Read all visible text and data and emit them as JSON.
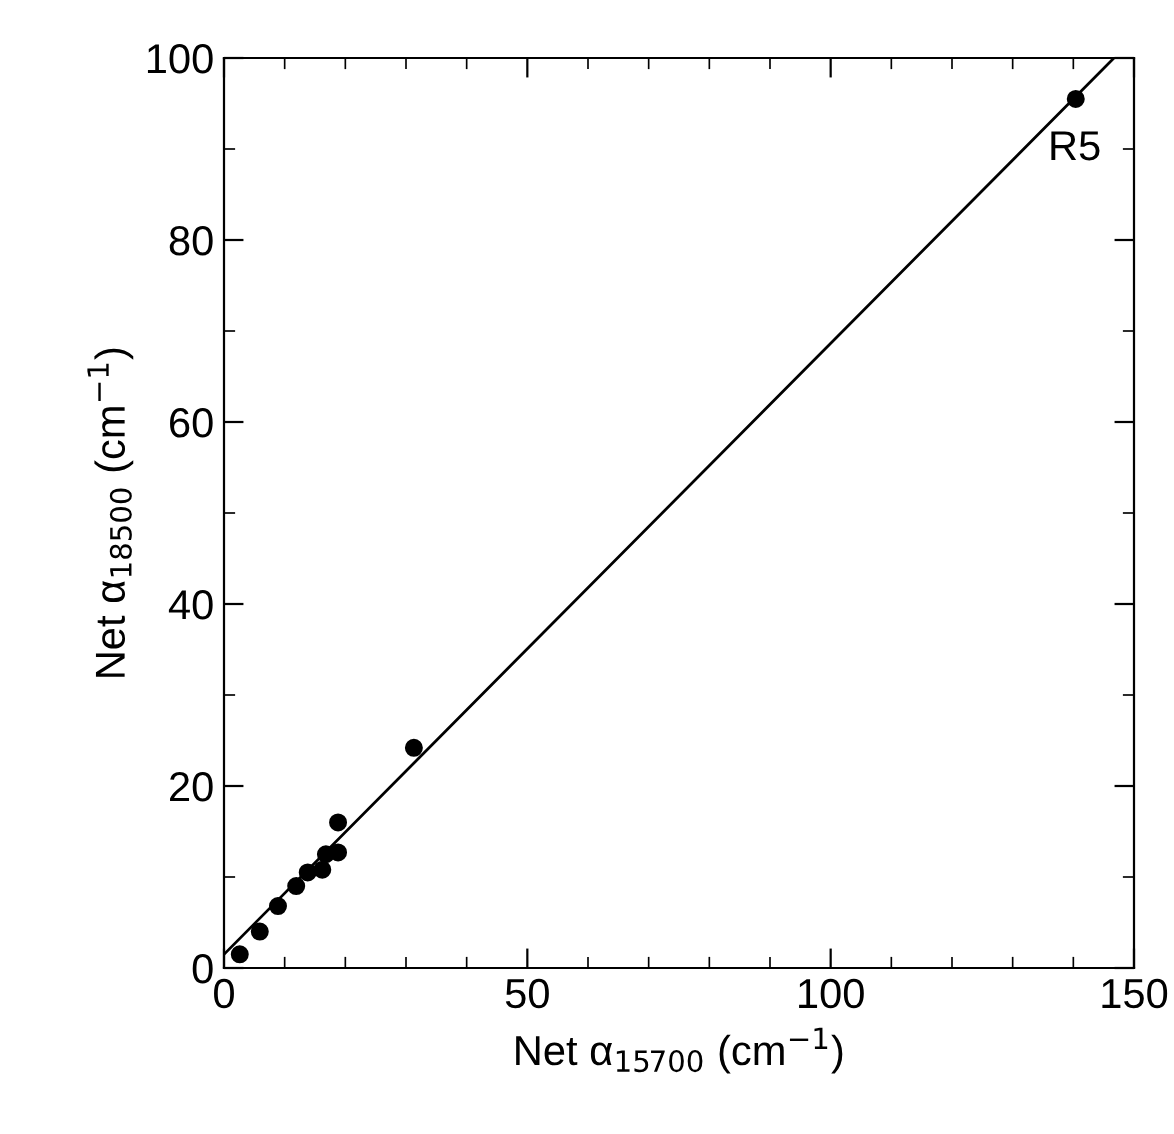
{
  "chart_data": {
    "type": "scatter",
    "xlabel": "Net α$_{15700}$ (cm$^{−1}$)",
    "ylabel": "Net α$_{18500}$ (cm$^{−1}$)",
    "series": [
      {
        "color": "#000000",
        "marker": "circle",
        "x": [
          2.6,
          5.9,
          8.9,
          11.9,
          13.8,
          16.2,
          16.8,
          18.8,
          18.8,
          31.3,
          140.4
        ],
        "values": [
          1.5,
          4.0,
          6.8,
          9.0,
          10.5,
          10.8,
          12.5,
          12.7,
          16.0,
          24.2,
          95.5
        ]
      },
      {
        "type": "line",
        "color": "#000000",
        "line_style": "solid",
        "x": [
          0,
          146.7
        ],
        "values": [
          1.5,
          100
        ]
      }
    ],
    "annotations": [
      {
        "text": "R5",
        "x": 140.4,
        "y": 95.5
      }
    ],
    "xlim": [
      0,
      150
    ],
    "ylim": [
      0,
      100
    ],
    "xticks": [
      0,
      50,
      100,
      150
    ],
    "yticks": [
      0,
      20,
      40,
      60,
      80,
      100
    ],
    "grid": false,
    "legend": false
  }
}
